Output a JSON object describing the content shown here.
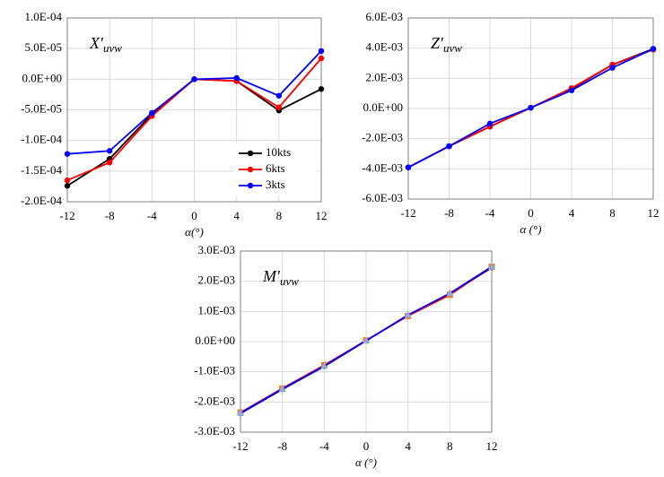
{
  "chart_data": [
    {
      "type": "line",
      "title": "X′",
      "title_subscript": "uvw",
      "xlabel": "α(°)",
      "x": [
        -12,
        -8,
        -4,
        0,
        4,
        8,
        12
      ],
      "xlim": [
        -12,
        12
      ],
      "xticks": [
        -12,
        -8,
        -4,
        0,
        4,
        8,
        12
      ],
      "ylim": [
        -0.0002,
        0.0001
      ],
      "yticks": [
        {
          "value": -0.0002,
          "label": "-2.0E-04"
        },
        {
          "value": -0.00015,
          "label": "-1.5E-04"
        },
        {
          "value": -0.0001,
          "label": "-1.0E-04"
        },
        {
          "value": -5e-05,
          "label": "-5.0E-05"
        },
        {
          "value": 0,
          "label": "0.0E+00"
        },
        {
          "value": 5e-05,
          "label": "5.0E-05"
        },
        {
          "value": 0.0001,
          "label": "1.0E-04"
        }
      ],
      "grid": true,
      "legend": "lower right",
      "series": [
        {
          "name": "10kts",
          "color": "#000000",
          "values": [
            -0.000174,
            -0.00013,
            -5.7e-05,
            0,
            -3e-06,
            -5.1e-05,
            -1.6e-05
          ]
        },
        {
          "name": "6kts",
          "color": "#ff0000",
          "values": [
            -0.000165,
            -0.000136,
            -6e-05,
            0,
            -3e-06,
            -4.6e-05,
            3.4e-05
          ]
        },
        {
          "name": "3kts",
          "color": "#0000ff",
          "values": [
            -0.000122,
            -0.000117,
            -5.5e-05,
            0,
            2e-06,
            -2.7e-05,
            4.6e-05
          ]
        }
      ]
    },
    {
      "type": "line",
      "title": "Z′",
      "title_subscript": "uvw",
      "xlabel": "α (°)",
      "x": [
        -12,
        -8,
        -4,
        0,
        4,
        8,
        12
      ],
      "xlim": [
        -12,
        12
      ],
      "xticks": [
        -12,
        -8,
        -4,
        0,
        4,
        8,
        12
      ],
      "ylim": [
        -0.006,
        0.006
      ],
      "yticks": [
        {
          "value": -0.006,
          "label": "-6.0E-03"
        },
        {
          "value": -0.004,
          "label": "-4.0E-03"
        },
        {
          "value": -0.002,
          "label": "-2.0E-03"
        },
        {
          "value": 0,
          "label": "0.0E+00"
        },
        {
          "value": 0.002,
          "label": "2.0E-03"
        },
        {
          "value": 0.004,
          "label": "4.0E-03"
        },
        {
          "value": 0.006,
          "label": "6.0E-03"
        }
      ],
      "grid": true,
      "series": [
        {
          "color": "#000000",
          "values": [
            -0.0039,
            -0.0025,
            -0.0012,
            5e-05,
            0.0013,
            0.0029,
            0.00395
          ]
        },
        {
          "color": "#ff0000",
          "values": [
            -0.0039,
            -0.0025,
            -0.0012,
            5e-05,
            0.00135,
            0.0029,
            0.0039
          ]
        },
        {
          "color": "#0000ff",
          "values": [
            -0.0039,
            -0.0025,
            -0.001,
            5e-05,
            0.0012,
            0.0027,
            0.00395
          ]
        }
      ]
    },
    {
      "type": "line",
      "title": "M′",
      "title_subscript": "uvw",
      "xlabel": "α (°)",
      "x": [
        -12,
        -8,
        -4,
        0,
        4,
        8,
        12
      ],
      "xlim": [
        -12,
        12
      ],
      "xticks": [
        -12,
        -8,
        -4,
        0,
        4,
        8,
        12
      ],
      "ylim": [
        -0.003,
        0.003
      ],
      "yticks": [
        {
          "value": -0.003,
          "label": "-3.0E-03"
        },
        {
          "value": -0.002,
          "label": "-2.0E-03"
        },
        {
          "value": -0.001,
          "label": "-1.0E-03"
        },
        {
          "value": 0,
          "label": "0.0E+00"
        },
        {
          "value": 0.001,
          "label": "1.0E-03"
        },
        {
          "value": 0.002,
          "label": "2.0E-03"
        },
        {
          "value": 0.003,
          "label": "3.0E-03"
        }
      ],
      "grid": true,
      "series": [
        {
          "color": "#000000",
          "marker": "circle",
          "marker_color": "#4472c4",
          "values": [
            -0.00238,
            -0.00158,
            -0.00082,
            3e-05,
            0.00087,
            0.00158,
            0.00245
          ]
        },
        {
          "color": "#ff0000",
          "marker": "square",
          "marker_color": "#ed7d31",
          "values": [
            -0.00235,
            -0.00155,
            -0.00078,
            4e-05,
            0.00085,
            0.00155,
            0.00248
          ]
        },
        {
          "color": "#0000ff",
          "marker": "triangle",
          "marker_color": "#8faadc",
          "values": [
            -0.00237,
            -0.00157,
            -0.00081,
            3e-05,
            0.00088,
            0.0016,
            0.00248
          ]
        }
      ]
    }
  ]
}
